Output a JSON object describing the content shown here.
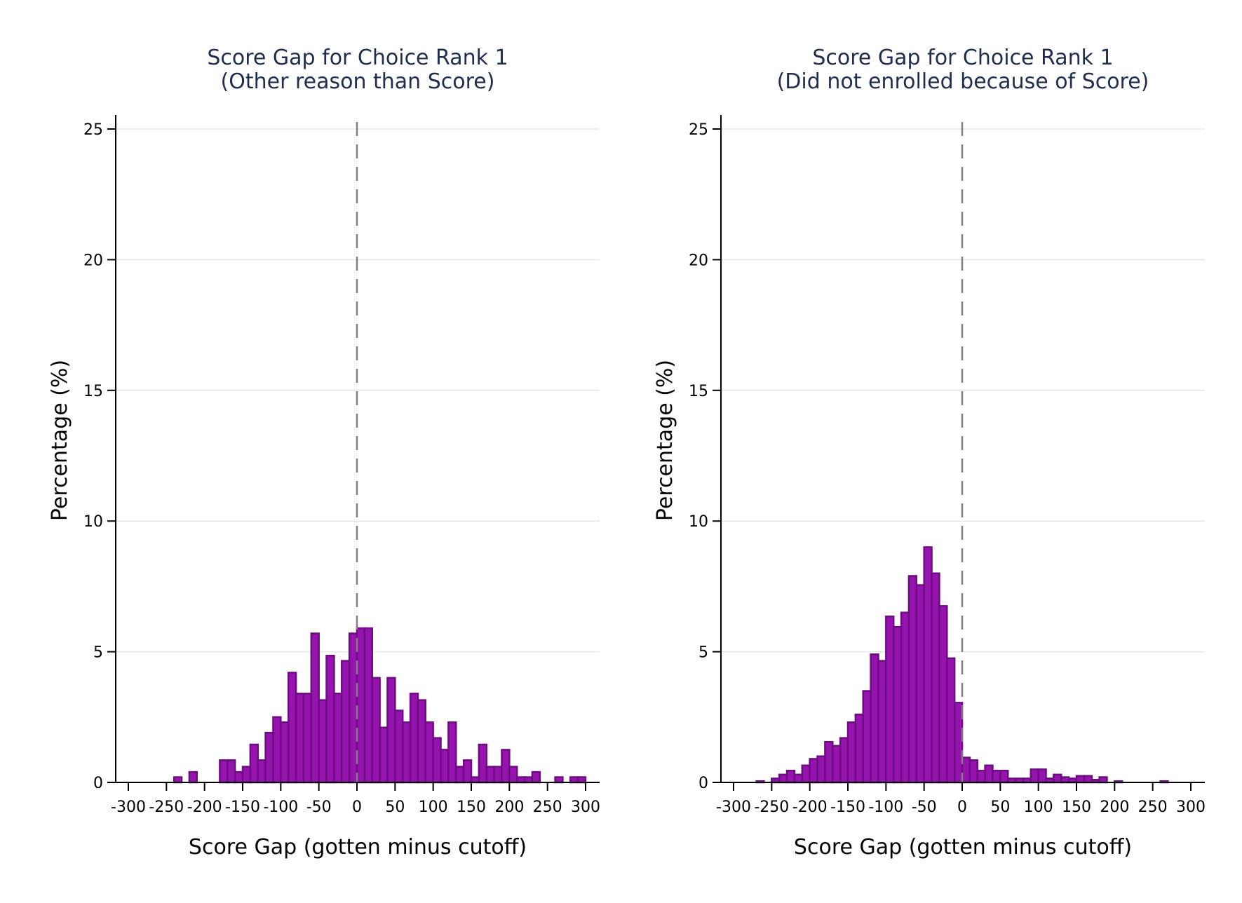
{
  "chart_data": [
    {
      "type": "bar",
      "title": "Score Gap for Choice Rank 1",
      "subtitle": "(Other reason than Score)",
      "xlabel": "Score Gap (gotten minus cutoff)",
      "ylabel": "Percentage (%)",
      "xlim": [
        -300,
        300
      ],
      "ylim": [
        0,
        25
      ],
      "xticks": [
        "-300",
        "-250",
        "-200",
        "-150",
        "-100",
        "-50",
        "0",
        "50",
        "100",
        "150",
        "200",
        "250",
        "300"
      ],
      "yticks": [
        "0",
        "5",
        "10",
        "15",
        "20",
        "25"
      ],
      "grid": true,
      "cutoff": 0,
      "bin_width": 10,
      "bin_start": [
        -240,
        -220,
        -180,
        -170,
        -160,
        -150,
        -140,
        -130,
        -120,
        -110,
        -100,
        -90,
        -80,
        -70,
        -60,
        -50,
        -40,
        -30,
        -20,
        -10,
        0,
        10,
        20,
        30,
        40,
        50,
        60,
        70,
        80,
        90,
        100,
        110,
        120,
        130,
        140,
        150,
        160,
        170,
        180,
        190,
        200,
        210,
        220,
        230,
        260,
        280,
        290
      ],
      "values": [
        0.2,
        0.4,
        0.85,
        0.85,
        0.4,
        0.6,
        1.45,
        0.85,
        1.9,
        2.5,
        2.3,
        4.2,
        3.4,
        3.4,
        5.7,
        3.15,
        4.85,
        3.4,
        4.65,
        5.7,
        5.9,
        5.9,
        4.0,
        2.1,
        4.0,
        2.75,
        2.3,
        3.4,
        3.15,
        2.3,
        1.7,
        1.25,
        2.3,
        0.6,
        0.85,
        0.2,
        1.45,
        0.6,
        0.6,
        1.25,
        0.6,
        0.2,
        0.2,
        0.4,
        0.2,
        0.2,
        0.2
      ],
      "bar_color": "#9613b0",
      "bar_edge_color": "#6c0d80"
    },
    {
      "type": "bar",
      "title": "Score Gap for Choice Rank 1",
      "subtitle": "(Did not enrolled because of Score)",
      "xlabel": "Score Gap (gotten minus cutoff)",
      "ylabel": "Percentage (%)",
      "xlim": [
        -300,
        300
      ],
      "ylim": [
        0,
        25
      ],
      "xticks": [
        "-300",
        "-250",
        "-200",
        "-150",
        "-100",
        "-50",
        "0",
        "50",
        "100",
        "150",
        "200",
        "250",
        "300"
      ],
      "yticks": [
        "0",
        "5",
        "10",
        "15",
        "20",
        "25"
      ],
      "grid": true,
      "cutoff": 0,
      "bin_width": 10,
      "bin_start": [
        -270,
        -250,
        -240,
        -230,
        -220,
        -210,
        -200,
        -190,
        -180,
        -170,
        -160,
        -150,
        -140,
        -130,
        -120,
        -110,
        -100,
        -90,
        -80,
        -70,
        -60,
        -50,
        -40,
        -30,
        -20,
        -10,
        0,
        10,
        20,
        30,
        40,
        50,
        60,
        70,
        80,
        90,
        100,
        110,
        120,
        130,
        140,
        150,
        160,
        170,
        180,
        200,
        260
      ],
      "values": [
        0.05,
        0.15,
        0.3,
        0.45,
        0.3,
        0.65,
        0.9,
        1.0,
        1.55,
        1.4,
        1.7,
        2.3,
        2.6,
        3.5,
        4.9,
        4.65,
        6.35,
        5.95,
        6.5,
        7.9,
        7.55,
        9.0,
        8.0,
        6.75,
        4.75,
        3.05,
        0.95,
        0.85,
        0.45,
        0.65,
        0.45,
        0.45,
        0.15,
        0.15,
        0.15,
        0.5,
        0.5,
        0.15,
        0.3,
        0.2,
        0.15,
        0.25,
        0.25,
        0.1,
        0.2,
        0.05,
        0.05
      ],
      "bar_color": "#9613b0",
      "bar_edge_color": "#6c0d80"
    }
  ]
}
